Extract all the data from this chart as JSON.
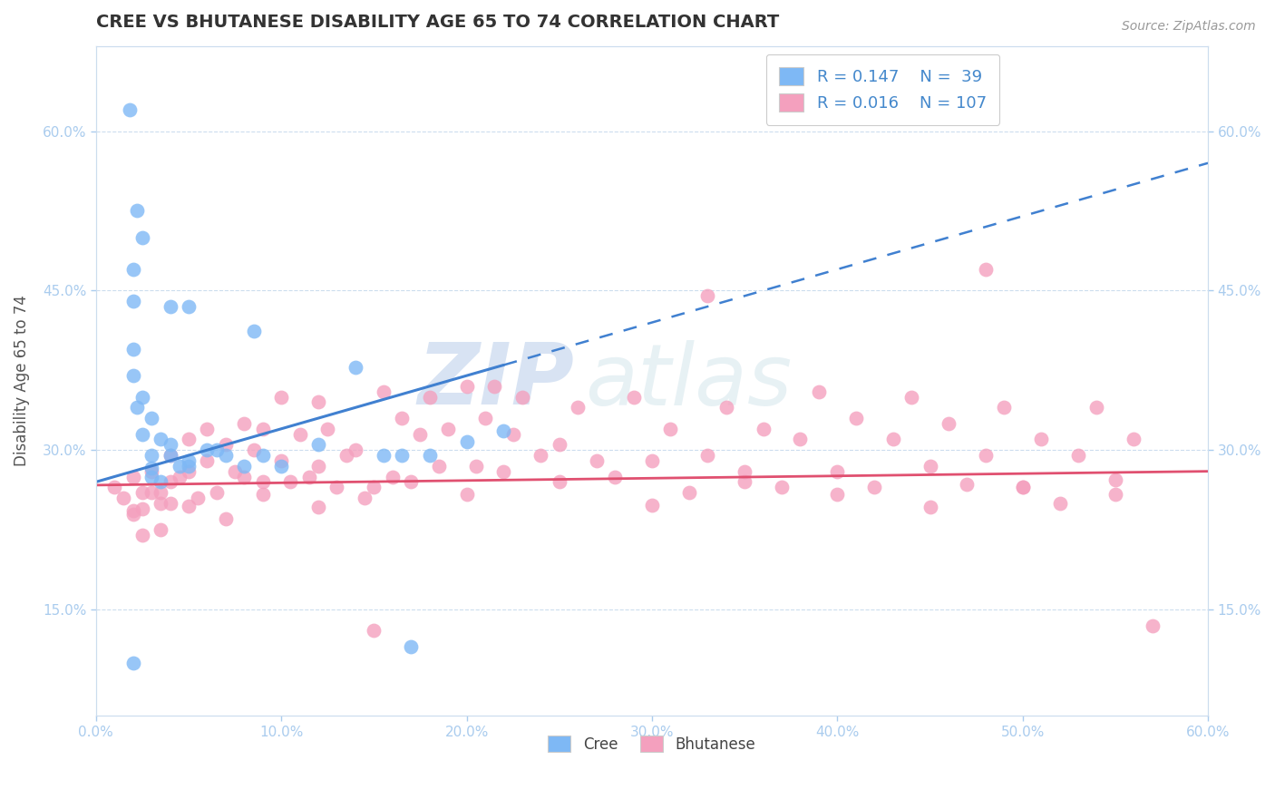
{
  "title": "CREE VS BHUTANESE DISABILITY AGE 65 TO 74 CORRELATION CHART",
  "xlabel": "",
  "ylabel": "Disability Age 65 to 74",
  "source": "Source: ZipAtlas.com",
  "xlim": [
    0.0,
    0.6
  ],
  "ylim": [
    0.05,
    0.68
  ],
  "xtick_labels": [
    "0.0%",
    "10.0%",
    "20.0%",
    "30.0%",
    "40.0%",
    "50.0%",
    "60.0%"
  ],
  "xtick_vals": [
    0.0,
    0.1,
    0.2,
    0.3,
    0.4,
    0.5,
    0.6
  ],
  "ytick_labels": [
    "15.0%",
    "30.0%",
    "45.0%",
    "60.0%"
  ],
  "ytick_vals": [
    0.15,
    0.3,
    0.45,
    0.6
  ],
  "legend_r_cree": "R = 0.147",
  "legend_n_cree": "N =  39",
  "legend_r_bhut": "R = 0.016",
  "legend_n_bhut": "N = 107",
  "cree_color": "#7eb8f5",
  "bhut_color": "#f4a0be",
  "cree_line_color": "#4080d0",
  "bhut_line_color": "#e05070",
  "watermark_zip": "ZIP",
  "watermark_atlas": "atlas",
  "cree_x": [
    0.018,
    0.022,
    0.025,
    0.02,
    0.02,
    0.02,
    0.02,
    0.022,
    0.025,
    0.03,
    0.03,
    0.03,
    0.035,
    0.04,
    0.04,
    0.045,
    0.05,
    0.05,
    0.06,
    0.065,
    0.07,
    0.08,
    0.085,
    0.09,
    0.1,
    0.12,
    0.14,
    0.155,
    0.165,
    0.17,
    0.18,
    0.2,
    0.22,
    0.02,
    0.025,
    0.03,
    0.035,
    0.04,
    0.05
  ],
  "cree_y": [
    0.62,
    0.525,
    0.5,
    0.47,
    0.44,
    0.395,
    0.37,
    0.34,
    0.315,
    0.295,
    0.283,
    0.275,
    0.27,
    0.435,
    0.305,
    0.285,
    0.285,
    0.435,
    0.3,
    0.3,
    0.295,
    0.285,
    0.412,
    0.295,
    0.285,
    0.305,
    0.378,
    0.295,
    0.295,
    0.115,
    0.295,
    0.308,
    0.318,
    0.1,
    0.35,
    0.33,
    0.31,
    0.295,
    0.29
  ],
  "bhut_x": [
    0.01,
    0.015,
    0.02,
    0.02,
    0.025,
    0.025,
    0.025,
    0.03,
    0.03,
    0.035,
    0.035,
    0.04,
    0.04,
    0.04,
    0.045,
    0.05,
    0.05,
    0.055,
    0.06,
    0.06,
    0.065,
    0.07,
    0.075,
    0.08,
    0.08,
    0.085,
    0.09,
    0.09,
    0.1,
    0.1,
    0.105,
    0.11,
    0.115,
    0.12,
    0.12,
    0.125,
    0.13,
    0.135,
    0.14,
    0.145,
    0.15,
    0.155,
    0.16,
    0.165,
    0.17,
    0.175,
    0.18,
    0.185,
    0.19,
    0.2,
    0.205,
    0.21,
    0.215,
    0.22,
    0.225,
    0.23,
    0.24,
    0.25,
    0.26,
    0.27,
    0.28,
    0.29,
    0.3,
    0.31,
    0.32,
    0.33,
    0.34,
    0.35,
    0.36,
    0.37,
    0.38,
    0.39,
    0.4,
    0.41,
    0.42,
    0.43,
    0.44,
    0.45,
    0.46,
    0.47,
    0.48,
    0.49,
    0.5,
    0.51,
    0.52,
    0.53,
    0.54,
    0.55,
    0.56,
    0.57,
    0.02,
    0.035,
    0.05,
    0.07,
    0.09,
    0.12,
    0.15,
    0.2,
    0.25,
    0.3,
    0.35,
    0.4,
    0.45,
    0.5,
    0.55,
    0.48,
    0.33
  ],
  "bhut_y": [
    0.265,
    0.255,
    0.275,
    0.24,
    0.26,
    0.245,
    0.22,
    0.28,
    0.26,
    0.25,
    0.225,
    0.295,
    0.27,
    0.25,
    0.275,
    0.31,
    0.28,
    0.255,
    0.32,
    0.29,
    0.26,
    0.305,
    0.28,
    0.325,
    0.275,
    0.3,
    0.32,
    0.27,
    0.35,
    0.29,
    0.27,
    0.315,
    0.275,
    0.345,
    0.285,
    0.32,
    0.265,
    0.295,
    0.3,
    0.255,
    0.265,
    0.355,
    0.275,
    0.33,
    0.27,
    0.315,
    0.35,
    0.285,
    0.32,
    0.36,
    0.285,
    0.33,
    0.36,
    0.28,
    0.315,
    0.35,
    0.295,
    0.305,
    0.34,
    0.29,
    0.275,
    0.35,
    0.29,
    0.32,
    0.26,
    0.295,
    0.34,
    0.28,
    0.32,
    0.265,
    0.31,
    0.355,
    0.28,
    0.33,
    0.265,
    0.31,
    0.35,
    0.285,
    0.325,
    0.268,
    0.295,
    0.34,
    0.265,
    0.31,
    0.25,
    0.295,
    0.34,
    0.272,
    0.31,
    0.135,
    0.243,
    0.26,
    0.247,
    0.235,
    0.258,
    0.246,
    0.13,
    0.258,
    0.27,
    0.248,
    0.27,
    0.258,
    0.246,
    0.265,
    0.258,
    0.47,
    0.445
  ],
  "cree_line_x0": 0.0,
  "cree_line_x_solid_end": 0.22,
  "cree_line_x1": 0.6,
  "cree_line_y0": 0.27,
  "cree_line_y1": 0.57,
  "bhut_line_y0": 0.267,
  "bhut_line_y1": 0.28
}
